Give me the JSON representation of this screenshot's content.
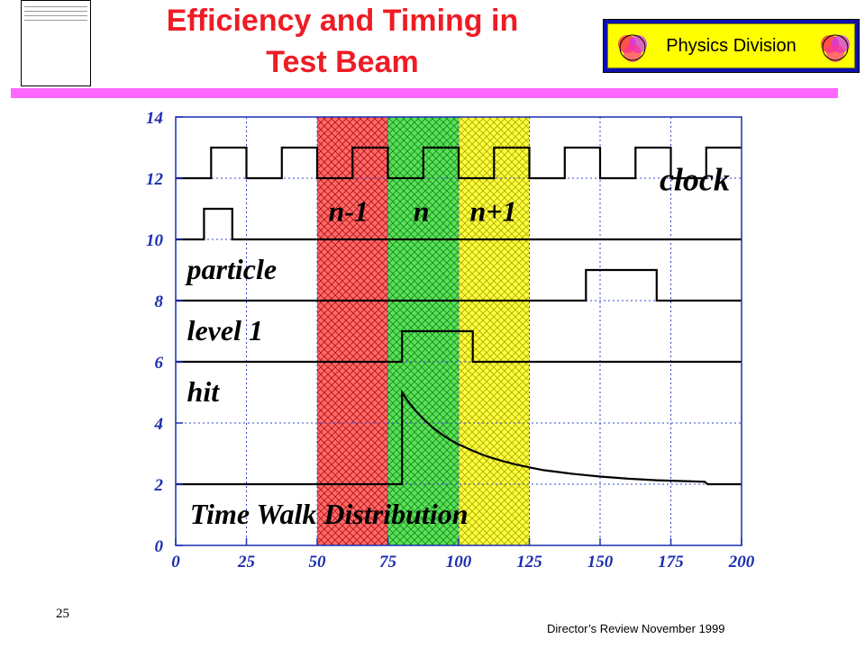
{
  "slide": {
    "title_line1": "Efficiency and Timing in",
    "title_line2": "Test Beam",
    "logo_text": "Physics Division",
    "page_number": "25",
    "footer": "Director’s Review November 1999"
  },
  "colors": {
    "title": "#ee1c25",
    "rule": "#ff66ff",
    "tick_labels": "#1b2db0",
    "band_red": "#ee3333",
    "band_green": "#22cc22",
    "band_yellow": "#eeee00",
    "logo_frame": "#1010b0",
    "logo_fill": "#ffff00"
  },
  "chart_data": {
    "type": "line",
    "xlim": [
      0,
      200
    ],
    "ylim": [
      0,
      14
    ],
    "x_ticks": [
      "0",
      "25",
      "50",
      "75",
      "100",
      "125",
      "150",
      "175",
      "200"
    ],
    "y_ticks": [
      "0",
      "2",
      "4",
      "6",
      "8",
      "10",
      "12",
      "14"
    ],
    "grid": true,
    "bands": [
      {
        "label": "n-1",
        "x": [
          50,
          75
        ],
        "color": "red"
      },
      {
        "label": "n",
        "x": [
          75,
          100
        ],
        "color": "green"
      },
      {
        "label": "n+1",
        "x": [
          100,
          125
        ],
        "color": "yellow"
      }
    ],
    "series": [
      {
        "name": "clock",
        "x": [
          0,
          12.5,
          12.5,
          25,
          25,
          37.5,
          37.5,
          50,
          50,
          62.5,
          62.5,
          75,
          75,
          87.5,
          87.5,
          100,
          100,
          112.5,
          112.5,
          125,
          125,
          137.5,
          137.5,
          150,
          150,
          162.5,
          162.5,
          175,
          175,
          187.5,
          187.5,
          200
        ],
        "y": [
          12,
          12,
          13,
          13,
          12,
          12,
          13,
          13,
          12,
          12,
          13,
          13,
          12,
          12,
          13,
          13,
          12,
          12,
          13,
          13,
          12,
          12,
          13,
          13,
          12,
          12,
          13,
          13,
          12,
          12,
          13,
          13
        ]
      },
      {
        "name": "particle",
        "x": [
          0,
          10,
          10,
          20,
          20,
          200
        ],
        "y": [
          10,
          10,
          11,
          11,
          10,
          10
        ]
      },
      {
        "name": "level 1",
        "x": [
          0,
          145,
          145,
          170,
          170,
          200
        ],
        "y": [
          8,
          8,
          9,
          9,
          8,
          8
        ]
      },
      {
        "name": "hit",
        "x": [
          0,
          80,
          80,
          105,
          105,
          200
        ],
        "y": [
          6,
          6,
          7,
          7,
          6,
          6
        ]
      },
      {
        "name": "Time Walk Distribution",
        "x": [
          0,
          80,
          80,
          82,
          85,
          88,
          91,
          94,
          97,
          100,
          105,
          110,
          115,
          120,
          125,
          130,
          140,
          150,
          160,
          170,
          180,
          187,
          188,
          200
        ],
        "y": [
          2,
          2,
          5,
          4.72,
          4.38,
          4.09,
          3.84,
          3.63,
          3.45,
          3.3,
          3.09,
          2.91,
          2.77,
          2.65,
          2.55,
          2.46,
          2.34,
          2.25,
          2.18,
          2.13,
          2.1,
          2.08,
          2.0,
          2.0
        ]
      }
    ],
    "annotations": [
      {
        "text": "clock",
        "x": 171,
        "y": 11.6,
        "size": 36
      },
      {
        "text": "n-1",
        "x": 54,
        "y": 10.6,
        "size": 32
      },
      {
        "text": "n",
        "x": 84,
        "y": 10.6,
        "size": 32
      },
      {
        "text": "n+1",
        "x": 104,
        "y": 10.6,
        "size": 32
      },
      {
        "text": "particle",
        "x": 4,
        "y": 8.7,
        "size": 32
      },
      {
        "text": "level 1",
        "x": 4,
        "y": 6.7,
        "size": 32
      },
      {
        "text": "hit",
        "x": 4,
        "y": 4.7,
        "size": 32
      },
      {
        "text": "Time Walk Distribution",
        "x": 5,
        "y": 0.7,
        "size": 32
      }
    ]
  }
}
